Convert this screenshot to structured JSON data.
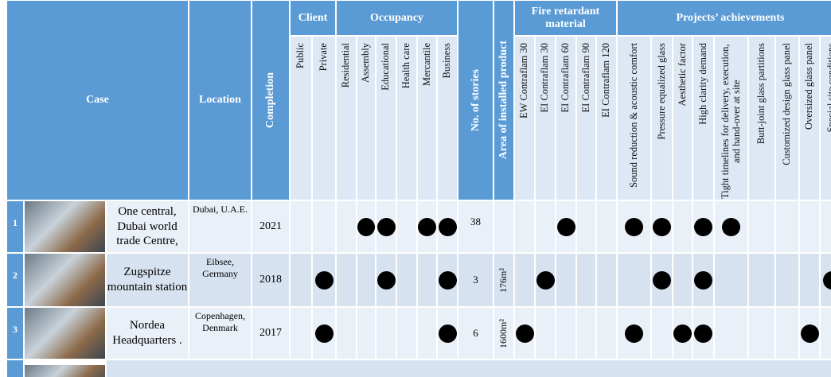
{
  "headers": {
    "case": "Case",
    "location": "Location",
    "completion": "Completion",
    "stories": "No. of stories",
    "area": "Area of installed product"
  },
  "groups": [
    {
      "title": "Client",
      "columns": [
        "Public",
        "Private"
      ]
    },
    {
      "title": "Occupancy",
      "columns": [
        "Residential",
        "Assembly",
        "Educational",
        "Health care",
        "Mercantile",
        "Business"
      ]
    },
    {
      "title": "Fire retardant material",
      "columns": [
        "EW Contraflam 30",
        "EI Contraflam 30",
        "EI Contraflam 60",
        "EI Contraflam 90",
        "EI Contraflam 120"
      ]
    },
    {
      "title": "Projects’ achievements",
      "columns": [
        "Sound reduction & acoustic comfort",
        "Pressure equalized glass",
        "Aesthetic factor",
        "High clarity demand",
        "Tight timelines for delivery, execution, and hand-over at site",
        "Butt-joint glass partitions",
        "Customized design glass panel",
        "Oversized glass panel",
        "Special site conditions"
      ]
    }
  ],
  "rows": [
    {
      "number": "1",
      "case": "One central, Dubai world trade Centre,",
      "location": "Dubai, U.A.E.",
      "completion": "2021",
      "stories": "38",
      "marks": [
        [
          false,
          false
        ],
        [
          false,
          true,
          true,
          false,
          true,
          true
        ],
        [
          false,
          false,
          true,
          false,
          false
        ],
        [
          true,
          true,
          false,
          true,
          true,
          false,
          false,
          false,
          false
        ]
      ]
    },
    {
      "number": "2",
      "case": "Zugspitze mountain station",
      "location": "Eibsee, Germany",
      "completion": "2018",
      "stories": "3",
      "area": "176m²",
      "marks": [
        [
          false,
          true
        ],
        [
          false,
          false,
          true,
          false,
          false,
          true
        ],
        [
          false,
          true,
          false,
          false,
          false
        ],
        [
          false,
          true,
          false,
          true,
          false,
          false,
          false,
          false,
          true
        ]
      ]
    },
    {
      "number": "3",
      "case": "Nordea Headquarters .",
      "location": "Copenhagen, Denmark",
      "completion": "2017",
      "stories": "6",
      "area": "1600m²",
      "marks": [
        [
          false,
          true
        ],
        [
          false,
          false,
          false,
          false,
          false,
          true
        ],
        [
          true,
          false,
          false,
          false,
          false
        ],
        [
          true,
          false,
          true,
          true,
          false,
          false,
          false,
          true,
          false
        ]
      ]
    }
  ]
}
